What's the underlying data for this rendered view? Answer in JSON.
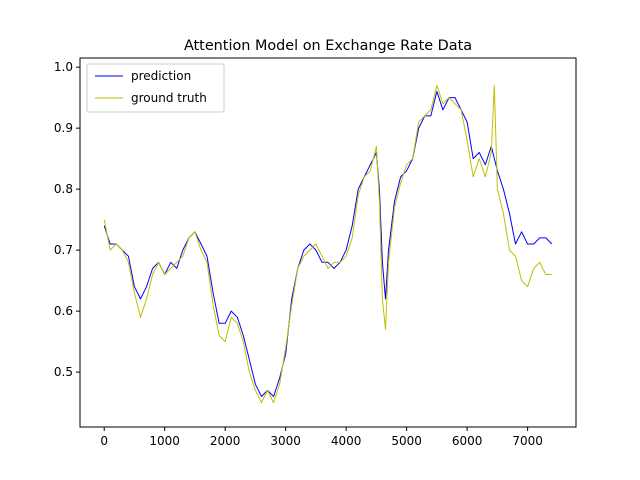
{
  "chart_data": {
    "type": "line",
    "title": "Attention Model on Exchange Rate Data",
    "xlabel": "",
    "ylabel": "",
    "xlim": [
      -400,
      7800
    ],
    "ylim": [
      0.41,
      1.015
    ],
    "x_ticks": [
      0,
      1000,
      2000,
      3000,
      4000,
      5000,
      6000,
      7000
    ],
    "y_ticks": [
      0.5,
      0.6,
      0.7,
      0.8,
      0.9,
      1.0
    ],
    "x_tick_labels": [
      "0",
      "1000",
      "2000",
      "3000",
      "4000",
      "5000",
      "6000",
      "7000"
    ],
    "y_tick_labels": [
      "0.5",
      "0.6",
      "0.7",
      "0.8",
      "0.9",
      "1.0"
    ],
    "grid": false,
    "legend": "top-left",
    "series": [
      {
        "name": "prediction",
        "color": "#0000ff",
        "x": [
          0,
          100,
          200,
          300,
          400,
          500,
          600,
          700,
          800,
          900,
          1000,
          1100,
          1200,
          1300,
          1400,
          1500,
          1600,
          1700,
          1800,
          1900,
          2000,
          2100,
          2200,
          2300,
          2400,
          2500,
          2600,
          2700,
          2800,
          2900,
          3000,
          3100,
          3200,
          3300,
          3400,
          3500,
          3600,
          3700,
          3800,
          3900,
          4000,
          4100,
          4200,
          4300,
          4400,
          4500,
          4550,
          4600,
          4650,
          4700,
          4800,
          4900,
          5000,
          5100,
          5200,
          5300,
          5400,
          5500,
          5600,
          5700,
          5800,
          5900,
          6000,
          6100,
          6200,
          6300,
          6400,
          6500,
          6600,
          6700,
          6800,
          6900,
          7000,
          7100,
          7200,
          7300,
          7400
        ],
        "values": [
          0.74,
          0.71,
          0.71,
          0.7,
          0.69,
          0.64,
          0.62,
          0.64,
          0.67,
          0.68,
          0.66,
          0.68,
          0.67,
          0.7,
          0.72,
          0.73,
          0.71,
          0.69,
          0.63,
          0.58,
          0.58,
          0.6,
          0.59,
          0.56,
          0.52,
          0.48,
          0.46,
          0.47,
          0.46,
          0.49,
          0.53,
          0.62,
          0.67,
          0.7,
          0.71,
          0.7,
          0.68,
          0.68,
          0.67,
          0.68,
          0.7,
          0.74,
          0.8,
          0.82,
          0.84,
          0.86,
          0.8,
          0.68,
          0.62,
          0.7,
          0.78,
          0.82,
          0.83,
          0.85,
          0.9,
          0.92,
          0.92,
          0.96,
          0.93,
          0.95,
          0.95,
          0.93,
          0.91,
          0.85,
          0.86,
          0.84,
          0.87,
          0.83,
          0.8,
          0.76,
          0.71,
          0.73,
          0.71,
          0.71,
          0.72,
          0.72,
          0.71
        ]
      },
      {
        "name": "ground truth",
        "color": "#bfbf00",
        "x": [
          0,
          100,
          200,
          300,
          400,
          500,
          600,
          700,
          800,
          900,
          1000,
          1100,
          1200,
          1300,
          1400,
          1500,
          1600,
          1700,
          1800,
          1900,
          2000,
          2100,
          2200,
          2300,
          2400,
          2500,
          2600,
          2700,
          2800,
          2900,
          3000,
          3100,
          3200,
          3300,
          3400,
          3500,
          3600,
          3700,
          3800,
          3900,
          4000,
          4100,
          4200,
          4300,
          4400,
          4500,
          4550,
          4600,
          4650,
          4700,
          4800,
          4900,
          5000,
          5100,
          5200,
          5300,
          5400,
          5500,
          5600,
          5700,
          5800,
          5900,
          6000,
          6100,
          6200,
          6300,
          6400,
          6450,
          6500,
          6600,
          6700,
          6800,
          6900,
          7000,
          7100,
          7200,
          7300,
          7400
        ],
        "values": [
          0.75,
          0.7,
          0.71,
          0.7,
          0.68,
          0.63,
          0.59,
          0.62,
          0.66,
          0.68,
          0.66,
          0.67,
          0.68,
          0.69,
          0.72,
          0.73,
          0.7,
          0.68,
          0.61,
          0.56,
          0.55,
          0.59,
          0.58,
          0.55,
          0.5,
          0.47,
          0.45,
          0.47,
          0.45,
          0.48,
          0.54,
          0.61,
          0.67,
          0.69,
          0.7,
          0.71,
          0.69,
          0.67,
          0.68,
          0.68,
          0.69,
          0.72,
          0.79,
          0.82,
          0.83,
          0.87,
          0.78,
          0.62,
          0.57,
          0.68,
          0.77,
          0.81,
          0.84,
          0.85,
          0.91,
          0.92,
          0.93,
          0.97,
          0.94,
          0.95,
          0.94,
          0.93,
          0.88,
          0.82,
          0.85,
          0.82,
          0.86,
          0.97,
          0.8,
          0.76,
          0.7,
          0.69,
          0.65,
          0.64,
          0.67,
          0.68,
          0.66,
          0.66
        ]
      }
    ]
  }
}
